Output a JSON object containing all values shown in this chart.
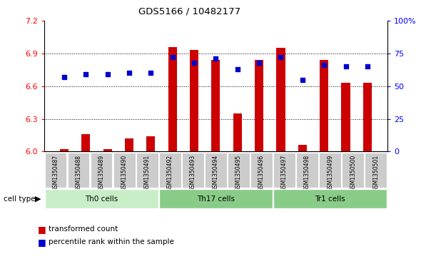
{
  "title": "GDS5166 / 10482177",
  "samples": [
    "GSM1350487",
    "GSM1350488",
    "GSM1350489",
    "GSM1350490",
    "GSM1350491",
    "GSM1350492",
    "GSM1350493",
    "GSM1350494",
    "GSM1350495",
    "GSM1350496",
    "GSM1350497",
    "GSM1350498",
    "GSM1350499",
    "GSM1350500",
    "GSM1350501"
  ],
  "transformed_count": [
    6.02,
    6.16,
    6.02,
    6.12,
    6.14,
    6.96,
    6.93,
    6.84,
    6.35,
    6.84,
    6.95,
    6.06,
    6.84,
    6.63,
    6.63
  ],
  "percentile_rank": [
    57,
    59,
    59,
    60,
    60,
    72,
    68,
    71,
    63,
    68,
    72,
    55,
    66,
    65,
    65
  ],
  "ylim_left": [
    6.0,
    7.2
  ],
  "ylim_right": [
    0,
    100
  ],
  "yticks_left": [
    6.0,
    6.3,
    6.6,
    6.9,
    7.2
  ],
  "yticks_right": [
    0,
    25,
    50,
    75,
    100
  ],
  "ytick_labels_right": [
    "0",
    "25",
    "50",
    "75",
    "100%"
  ],
  "bar_color": "#cc0000",
  "dot_color": "#0000cc",
  "plot_bg_color": "#ffffff",
  "xtick_bg_color": "#cccccc",
  "group_defs": [
    {
      "start": 0,
      "end": 5,
      "color": "#c8eec8",
      "label": "Th0 cells"
    },
    {
      "start": 5,
      "end": 10,
      "color": "#88cc88",
      "label": "Th17 cells"
    },
    {
      "start": 10,
      "end": 15,
      "color": "#88cc88",
      "label": "Tr1 cells"
    }
  ],
  "legend_tc": "transformed count",
  "legend_pr": "percentile rank within the sample",
  "grid_lines": [
    6.3,
    6.6,
    6.9
  ],
  "bar_width": 0.4
}
